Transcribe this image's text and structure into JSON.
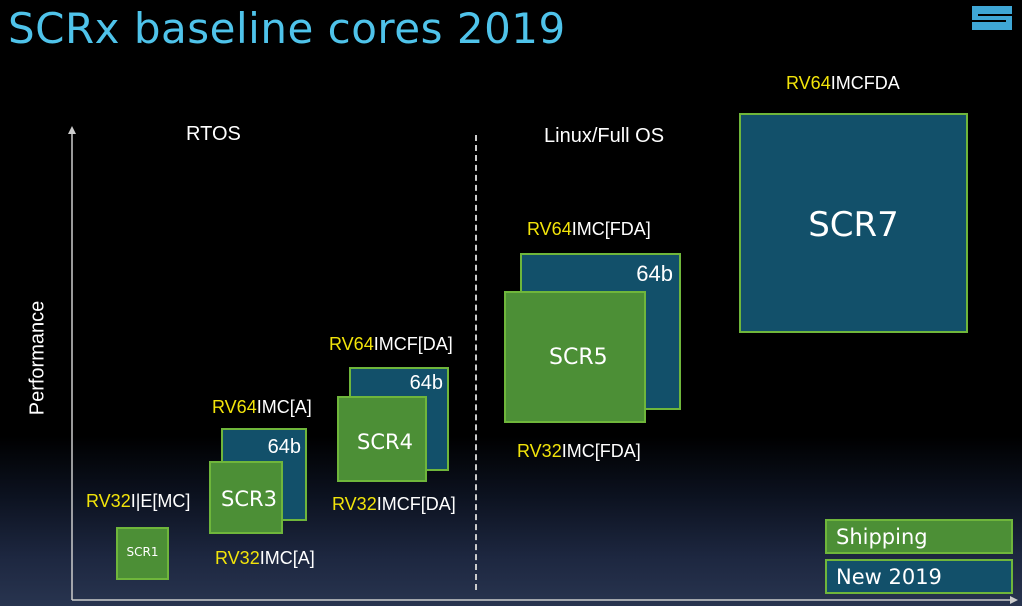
{
  "title": "SCRx baseline cores 2019",
  "axes": {
    "y_label": "Performance"
  },
  "sections": {
    "rtos": "RTOS",
    "linux": "Linux/Full OS"
  },
  "colors": {
    "title": "#4fc3ea",
    "isa_prefix": "#f2e40a",
    "shipping": "#4c8f36",
    "new_2019": "#12506a",
    "border": "#6fb63b"
  },
  "cores": {
    "scr1": {
      "name": "SCR1",
      "isa_bottom": {
        "prefix": "RV32",
        "suffix": "I|E[MC]"
      }
    },
    "scr3": {
      "name": "SCR3",
      "bits": "64b",
      "isa_top": {
        "prefix": "RV64",
        "suffix": "IMC[A]"
      },
      "isa_bottom": {
        "prefix": "RV32",
        "suffix": "IMC[A]"
      }
    },
    "scr4": {
      "name": "SCR4",
      "bits": "64b",
      "isa_top": {
        "prefix": "RV64",
        "suffix": "IMCF[DA]"
      },
      "isa_bottom": {
        "prefix": "RV32",
        "suffix": "IMCF[DA]"
      }
    },
    "scr5": {
      "name": "SCR5",
      "bits": "64b",
      "isa_top": {
        "prefix": "RV64",
        "suffix": "IMC[FDA]"
      },
      "isa_bottom": {
        "prefix": "RV32",
        "suffix": "IMC[FDA]"
      }
    },
    "scr7": {
      "name": "SCR7",
      "isa_top": {
        "prefix": "RV64",
        "suffix": "IMCFDA"
      }
    }
  },
  "legend": {
    "shipping": "Shipping",
    "new": "New 2019"
  }
}
